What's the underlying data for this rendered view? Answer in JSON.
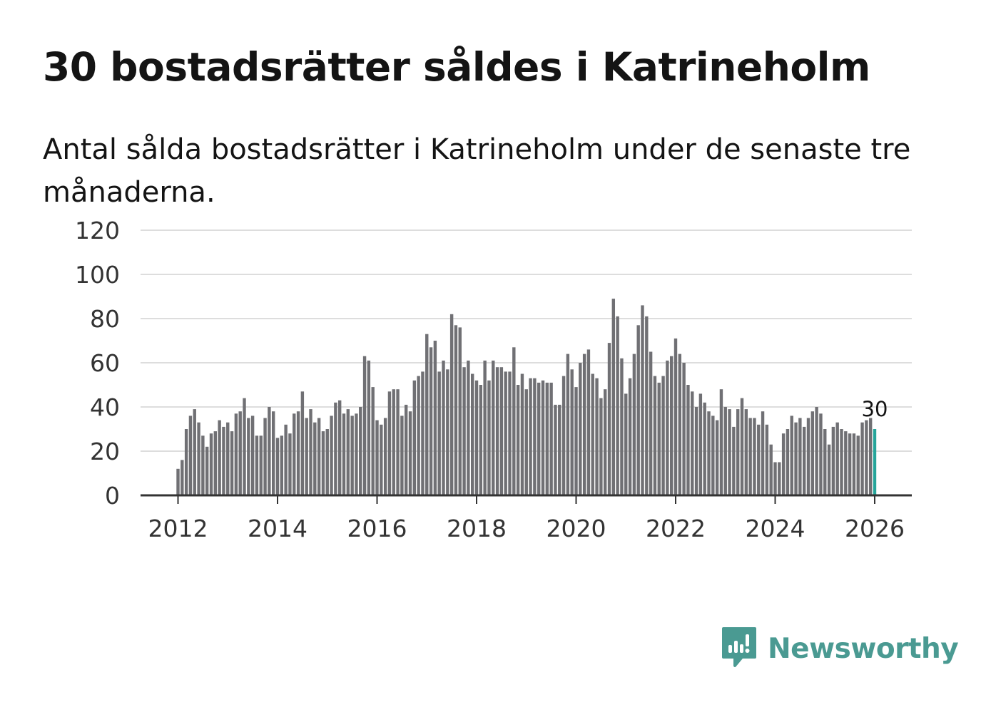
{
  "header": {
    "title": "30 bostadsrätter såldes i Katrineholm",
    "subtitle": "Antal sålda bostadsrätter i Katrineholm under de senaste tre månaderna."
  },
  "brand": {
    "name": "Newsworthy",
    "icon": "newsworthy-logo-icon",
    "color": "#4a9a92"
  },
  "colors": {
    "bar": "#707074",
    "highlight": "#26a59a",
    "grid": "#dddddd",
    "axis": "#333333"
  },
  "chart_data": {
    "type": "bar",
    "title": "30 bostadsrätter såldes i Katrineholm",
    "xlabel": "",
    "ylabel": "",
    "ylim": [
      0,
      120
    ],
    "yticks": [
      0,
      20,
      40,
      60,
      80,
      100,
      120
    ],
    "xticks": [
      "2012",
      "2014",
      "2016",
      "2018",
      "2020",
      "2022",
      "2024",
      "2026"
    ],
    "start": "2012-01",
    "frequency": "monthly",
    "grid": true,
    "highlight_last": true,
    "last_label": "30",
    "values": [
      12,
      16,
      30,
      36,
      39,
      33,
      27,
      22,
      28,
      29,
      34,
      31,
      33,
      29,
      37,
      38,
      44,
      35,
      36,
      27,
      27,
      35,
      40,
      38,
      26,
      27,
      32,
      28,
      37,
      38,
      47,
      35,
      39,
      33,
      35,
      29,
      30,
      36,
      42,
      43,
      37,
      39,
      36,
      37,
      40,
      63,
      61,
      49,
      34,
      32,
      35,
      47,
      48,
      48,
      36,
      41,
      38,
      52,
      54,
      56,
      73,
      67,
      70,
      56,
      61,
      57,
      82,
      77,
      76,
      58,
      61,
      55,
      52,
      50,
      61,
      52,
      61,
      58,
      58,
      56,
      56,
      67,
      50,
      55,
      48,
      53,
      53,
      51,
      52,
      51,
      51,
      41,
      41,
      54,
      64,
      57,
      49,
      60,
      64,
      66,
      55,
      53,
      44,
      48,
      69,
      89,
      81,
      62,
      46,
      53,
      64,
      77,
      86,
      81,
      65,
      54,
      51,
      54,
      61,
      63,
      71,
      64,
      60,
      50,
      47,
      40,
      46,
      42,
      38,
      36,
      34,
      48,
      40,
      39,
      31,
      39,
      44,
      39,
      35,
      35,
      32,
      38,
      32,
      23,
      15,
      15,
      28,
      30,
      36,
      33,
      35,
      31,
      35,
      38,
      40,
      37,
      30,
      23,
      31,
      33,
      30,
      29,
      28,
      28,
      27,
      33,
      34,
      35,
      30
    ]
  }
}
